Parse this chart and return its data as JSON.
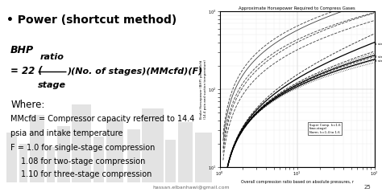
{
  "bg_color": "#ffffff",
  "slide_bg": "#f5f5f5",
  "title": "• Power (shortcut method)",
  "title_fontsize": 11,
  "formula_bhp": "BHP",
  "formula_main": "= 22 (",
  "formula_frac_num": "ratio",
  "formula_frac_den": "stage",
  "formula_end": ")(No. of stages)(MMcfd)(F)",
  "where_label": "Where:",
  "def1a": "MMcfd = Compressor capacity referred to 14.4",
  "def1b": "psia and intake temperature",
  "def2": "F = 1.0 for single-stage compression",
  "def3": "1.08 for two-stage compression",
  "def4": "1.10 for three-stage compression",
  "chart_title": "Approximate Horsepower Required to Compress Gases",
  "chart_xlabel": "Overall compression ratio based on absolute pressures, r",
  "chart_ylabel": "Brake Horsepower (BHP) per MMcfd\n(14.4 psia and suction temperature)",
  "footer_email": "hassan.elbanhawi@gmail.com",
  "footer_page": "25",
  "x_min": 1.0,
  "x_max": 100.0,
  "y_min": 10.0,
  "y_max": 1000.0
}
